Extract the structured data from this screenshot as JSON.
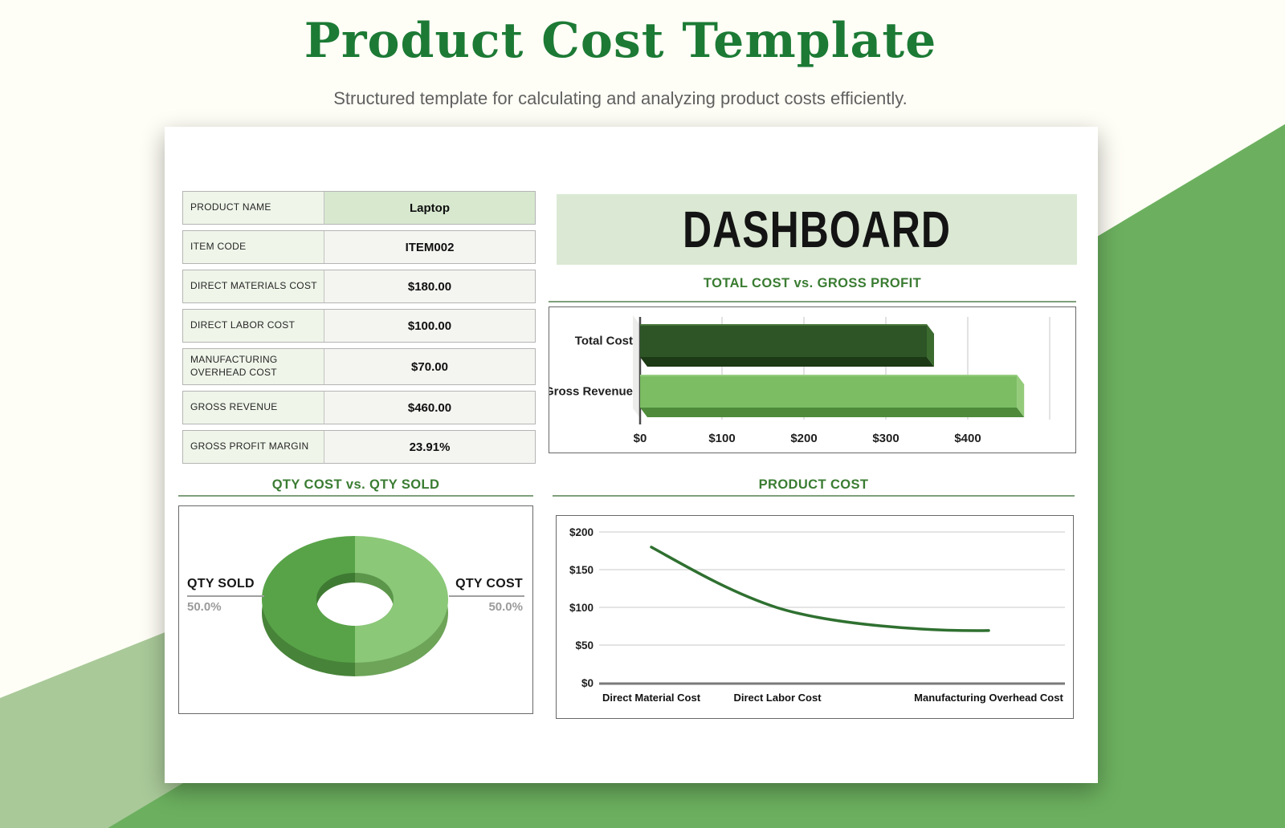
{
  "page": {
    "title": "Product Cost Template",
    "subtitle": "Structured template for calculating and analyzing product costs efficiently."
  },
  "colors": {
    "title_green": "#1c7a35",
    "accent_triangle_green": "#6cb05f",
    "accent_polygon_light_green": "#a9c999",
    "banner_bg": "#dbe9d4",
    "table_label_bg": "#eff5e9",
    "table_highlight_bg": "#d7e8cf",
    "chart_title_green": "#3a7c32",
    "bar_dark_green": "#2d5526",
    "bar_light_green": "#7cbd63"
  },
  "card": {
    "banner": "DASHBOARD",
    "table": {
      "rows": [
        {
          "label": "PRODUCT NAME",
          "value": "Laptop",
          "highlight": true
        },
        {
          "label": "ITEM CODE",
          "value": "ITEM002"
        },
        {
          "label": "DIRECT MATERIALS COST",
          "value": "$180.00"
        },
        {
          "label": "DIRECT LABOR COST",
          "value": "$100.00"
        },
        {
          "label": "MANUFACTURING OVERHEAD COST",
          "value": "$70.00"
        },
        {
          "label": "GROSS REVENUE",
          "value": "$460.00"
        },
        {
          "label": "GROSS PROFIT MARGIN",
          "value": "23.91%"
        }
      ]
    }
  },
  "chart_data": [
    {
      "type": "bar",
      "orientation": "horizontal",
      "title": "TOTAL COST vs. GROSS PROFIT",
      "categories": [
        "Total Cost",
        "Gross Revenue"
      ],
      "values": [
        350,
        460
      ],
      "colors": [
        "#2d5526",
        "#7cbd63"
      ],
      "xticks": [
        "$0",
        "$100",
        "$200",
        "$300",
        "$400"
      ],
      "xlim": [
        0,
        500
      ],
      "grid": true,
      "style": "3d"
    },
    {
      "type": "pie",
      "donut": true,
      "title": "QTY COST vs. QTY SOLD",
      "labels": [
        "QTY SOLD",
        "QTY COST"
      ],
      "values": [
        50.0,
        50.0
      ],
      "value_labels": [
        "50.0%",
        "50.0%"
      ],
      "colors": [
        "#58a348",
        "#8bc878"
      ],
      "style": "3d"
    },
    {
      "type": "line",
      "title": "PRODUCT COST",
      "categories": [
        "Direct Material Cost",
        "Direct Labor Cost",
        "Manufacturing Overhead Cost"
      ],
      "values": [
        180,
        100,
        70
      ],
      "yticks": [
        "$0",
        "$50",
        "$100",
        "$150",
        "$200"
      ],
      "ylim": [
        0,
        200
      ],
      "color": "#2f7030",
      "grid": true
    }
  ]
}
